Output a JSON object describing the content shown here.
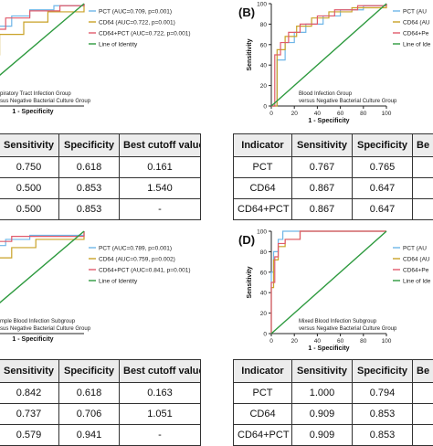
{
  "chart_data": [
    {
      "type": "line",
      "panel": "",
      "xlabel": "1 - Specificity",
      "ylabel": "",
      "annotation": [
        "piratory Tract Infection Group",
        "sus Negative Bacterial Culture Group"
      ],
      "legend": [
        "PCT (AUC=0.709, p=0.001)",
        "CD64 (AUC=0.722, p=0.001)",
        "CD64+PCT (AUC=0.722, p=0.001)",
        "Line of Identity"
      ],
      "series": [
        {
          "color": "#6fb6e8",
          "points": [
            [
              0,
              0
            ],
            [
              0.03,
              0.3
            ],
            [
              0.06,
              0.5
            ],
            [
              0.09,
              0.62
            ],
            [
              0.15,
              0.7
            ],
            [
              0.25,
              0.78
            ],
            [
              0.4,
              0.88
            ],
            [
              0.55,
              0.94
            ],
            [
              0.75,
              0.98
            ],
            [
              1,
              1
            ]
          ]
        },
        {
          "color": "#c9a227",
          "points": [
            [
              0,
              0
            ],
            [
              0.15,
              0.5
            ],
            [
              0.3,
              0.7
            ],
            [
              0.5,
              0.82
            ],
            [
              0.7,
              0.92
            ],
            [
              1,
              1
            ]
          ]
        },
        {
          "color": "#e05a6b",
          "points": [
            [
              0,
              0
            ],
            [
              0.02,
              0.4
            ],
            [
              0.05,
              0.55
            ],
            [
              0.1,
              0.65
            ],
            [
              0.2,
              0.75
            ],
            [
              0.35,
              0.86
            ],
            [
              0.55,
              0.93
            ],
            [
              0.8,
              0.98
            ],
            [
              1,
              1
            ]
          ]
        },
        {
          "color": "#2e9a3f",
          "points": [
            [
              0,
              0
            ],
            [
              1,
              1
            ]
          ]
        }
      ]
    },
    {
      "type": "line",
      "panel": "(B)",
      "xlabel": "1 - Specificity",
      "ylabel": "Sensitivity",
      "yticks": [
        "100",
        "80",
        "60",
        "40",
        "20",
        "0"
      ],
      "xticks": [
        "0",
        "20",
        "40",
        "60",
        "80",
        "100"
      ],
      "annotation": [
        "Blood Infection Group",
        "versus Negative Bacterial Culture Group"
      ],
      "legend": [
        "PCT (AU",
        "CD64 (AU",
        "CD64+Pe",
        "Line of Ide"
      ],
      "series": [
        {
          "color": "#6fb6e8",
          "points": [
            [
              0,
              0
            ],
            [
              0.05,
              0.45
            ],
            [
              0.12,
              0.62
            ],
            [
              0.2,
              0.72
            ],
            [
              0.3,
              0.8
            ],
            [
              0.45,
              0.88
            ],
            [
              0.6,
              0.94
            ],
            [
              0.8,
              0.98
            ],
            [
              1,
              1
            ]
          ]
        },
        {
          "color": "#c9a227",
          "points": [
            [
              0,
              0
            ],
            [
              0.05,
              0.55
            ],
            [
              0.12,
              0.68
            ],
            [
              0.22,
              0.78
            ],
            [
              0.35,
              0.86
            ],
            [
              0.5,
              0.92
            ],
            [
              0.7,
              0.96
            ],
            [
              1,
              1
            ]
          ]
        },
        {
          "color": "#e05a6b",
          "points": [
            [
              0,
              0
            ],
            [
              0.03,
              0.5
            ],
            [
              0.08,
              0.62
            ],
            [
              0.15,
              0.72
            ],
            [
              0.25,
              0.8
            ],
            [
              0.4,
              0.88
            ],
            [
              0.55,
              0.94
            ],
            [
              0.75,
              0.98
            ],
            [
              1,
              1
            ]
          ]
        },
        {
          "color": "#2e9a3f",
          "points": [
            [
              0,
              0
            ],
            [
              1,
              1
            ]
          ]
        }
      ]
    },
    {
      "type": "line",
      "panel": "",
      "xlabel": "1 - Specificity",
      "ylabel": "",
      "annotation": [
        "mple Blood Infection Subgroup",
        "sus Negative Bacterial Culture Group"
      ],
      "legend": [
        "PCT (AUC=0.789, p=0.001)",
        "CD64 (AUC=0.759, p=0.002)",
        "CD64+PCT (AUC=0.841, p=0.001)",
        "Line of Identity"
      ],
      "series": [
        {
          "color": "#6fb6e8",
          "points": [
            [
              0,
              0
            ],
            [
              0.02,
              0.55
            ],
            [
              0.06,
              0.7
            ],
            [
              0.12,
              0.78
            ],
            [
              0.22,
              0.86
            ],
            [
              0.35,
              0.92
            ],
            [
              0.55,
              0.96
            ],
            [
              1,
              1
            ]
          ]
        },
        {
          "color": "#c9a227",
          "points": [
            [
              0,
              0
            ],
            [
              0.05,
              0.5
            ],
            [
              0.12,
              0.62
            ],
            [
              0.25,
              0.74
            ],
            [
              0.4,
              0.84
            ],
            [
              0.6,
              0.92
            ],
            [
              1,
              1
            ]
          ]
        },
        {
          "color": "#e05a6b",
          "points": [
            [
              0,
              0
            ],
            [
              0.02,
              0.62
            ],
            [
              0.06,
              0.75
            ],
            [
              0.12,
              0.85
            ],
            [
              0.22,
              0.9
            ],
            [
              0.4,
              0.95
            ],
            [
              1,
              1
            ]
          ]
        },
        {
          "color": "#2e9a3f",
          "points": [
            [
              0,
              0
            ],
            [
              1,
              1
            ]
          ]
        }
      ]
    },
    {
      "type": "line",
      "panel": "(D)",
      "xlabel": "1 - Specificity",
      "ylabel": "Sensitivity",
      "yticks": [
        "100",
        "80",
        "60",
        "40",
        "20",
        "0"
      ],
      "xticks": [
        "0",
        "20",
        "40",
        "60",
        "80",
        "100"
      ],
      "annotation": [
        "Mixed Blood Infection Subgroup",
        "versus Negative Bacterial Culture Group"
      ],
      "legend": [
        "PCT (AU",
        "CD64 (AU",
        "CD64+Pe",
        "Line of Ide"
      ],
      "series": [
        {
          "color": "#6fb6e8",
          "points": [
            [
              0,
              0
            ],
            [
              0,
              0.6
            ],
            [
              0.02,
              0.8
            ],
            [
              0.06,
              0.92
            ],
            [
              0.1,
              1
            ],
            [
              1,
              1
            ]
          ]
        },
        {
          "color": "#c9a227",
          "points": [
            [
              0,
              0
            ],
            [
              0,
              0.45
            ],
            [
              0.02,
              0.72
            ],
            [
              0.06,
              0.85
            ],
            [
              0.12,
              0.92
            ],
            [
              0.25,
              1
            ],
            [
              1,
              1
            ]
          ]
        },
        {
          "color": "#e05a6b",
          "points": [
            [
              0,
              0
            ],
            [
              0,
              0.5
            ],
            [
              0.03,
              0.75
            ],
            [
              0.06,
              0.88
            ],
            [
              0.12,
              0.92
            ],
            [
              0.25,
              1
            ],
            [
              1,
              1
            ]
          ]
        },
        {
          "color": "#2e9a3f",
          "points": [
            [
              0,
              0
            ],
            [
              1,
              1
            ]
          ]
        }
      ]
    }
  ],
  "tables": {
    "a": {
      "headers": [
        "Sensitivity",
        "Specificity",
        "Best cutoff value"
      ],
      "rows": [
        [
          "0.750",
          "0.618",
          "0.161"
        ],
        [
          "0.500",
          "0.853",
          "1.540"
        ],
        [
          "0.500",
          "0.853",
          "-"
        ]
      ]
    },
    "b": {
      "headers": [
        "Indicator",
        "Sensitivity",
        "Specificity",
        "Be"
      ],
      "rows": [
        [
          "PCT",
          "0.767",
          "0.765",
          ""
        ],
        [
          "CD64",
          "0.867",
          "0.647",
          ""
        ],
        [
          "CD64+PCT",
          "0.867",
          "0.647",
          ""
        ]
      ]
    },
    "c": {
      "headers": [
        "Sensitivity",
        "Specificity",
        "Best cutoff value"
      ],
      "rows": [
        [
          "0.842",
          "0.618",
          "0.163"
        ],
        [
          "0.737",
          "0.706",
          "1.051"
        ],
        [
          "0.579",
          "0.941",
          "-"
        ]
      ]
    },
    "d": {
      "headers": [
        "Indicator",
        "Sensitivity",
        "Specificity",
        "Be"
      ],
      "rows": [
        [
          "PCT",
          "1.000",
          "0.794",
          ""
        ],
        [
          "CD64",
          "0.909",
          "0.853",
          ""
        ],
        [
          "CD64+PCT",
          "0.909",
          "0.853",
          ""
        ]
      ]
    }
  }
}
